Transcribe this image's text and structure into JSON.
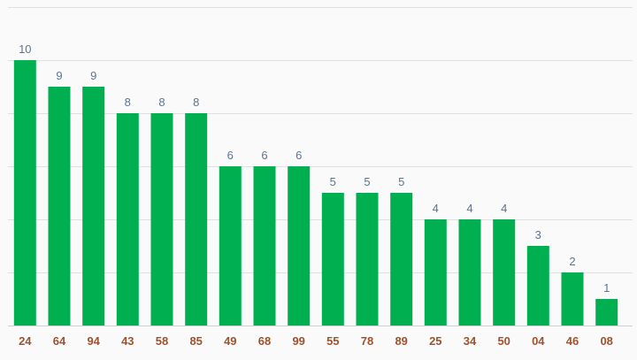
{
  "chart_data": {
    "type": "bar",
    "categories": [
      "24",
      "64",
      "94",
      "43",
      "58",
      "85",
      "49",
      "68",
      "99",
      "55",
      "78",
      "89",
      "25",
      "34",
      "50",
      "04",
      "46",
      "08"
    ],
    "values": [
      10,
      9,
      9,
      8,
      8,
      8,
      6,
      6,
      6,
      5,
      5,
      5,
      4,
      4,
      4,
      3,
      2,
      1
    ],
    "title": "",
    "xlabel": "",
    "ylabel": "",
    "ylim": [
      0,
      12
    ],
    "grid": true,
    "legend": "none",
    "colors": {
      "bar": "#00b050",
      "data_label": "#5a7590",
      "tick_label": "#a0522d",
      "grid": "#e0e0e0"
    }
  }
}
